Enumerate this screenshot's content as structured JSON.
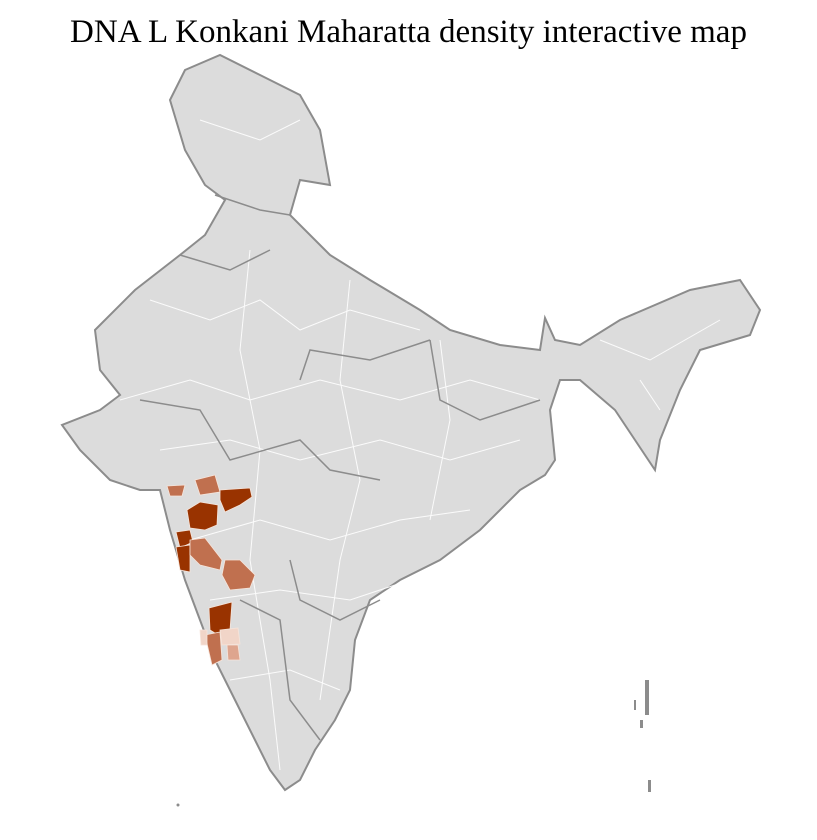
{
  "title": "DNA L Konkani Maharatta density interactive map",
  "colors": {
    "land": "#dcdcdc",
    "border": "#8c8c8c",
    "district_line": "#ffffff",
    "density_high": "#993300",
    "density_medium": "#c0704f",
    "density_low": "#dea58e",
    "density_very_low": "#f1d5c8"
  },
  "highlighted_regions": [
    {
      "level": "high"
    },
    {
      "level": "high"
    },
    {
      "level": "high"
    },
    {
      "level": "high"
    },
    {
      "level": "high"
    },
    {
      "level": "medium"
    },
    {
      "level": "medium"
    },
    {
      "level": "medium"
    },
    {
      "level": "medium"
    },
    {
      "level": "medium"
    },
    {
      "level": "low"
    },
    {
      "level": "very_low"
    },
    {
      "level": "very_low"
    }
  ]
}
